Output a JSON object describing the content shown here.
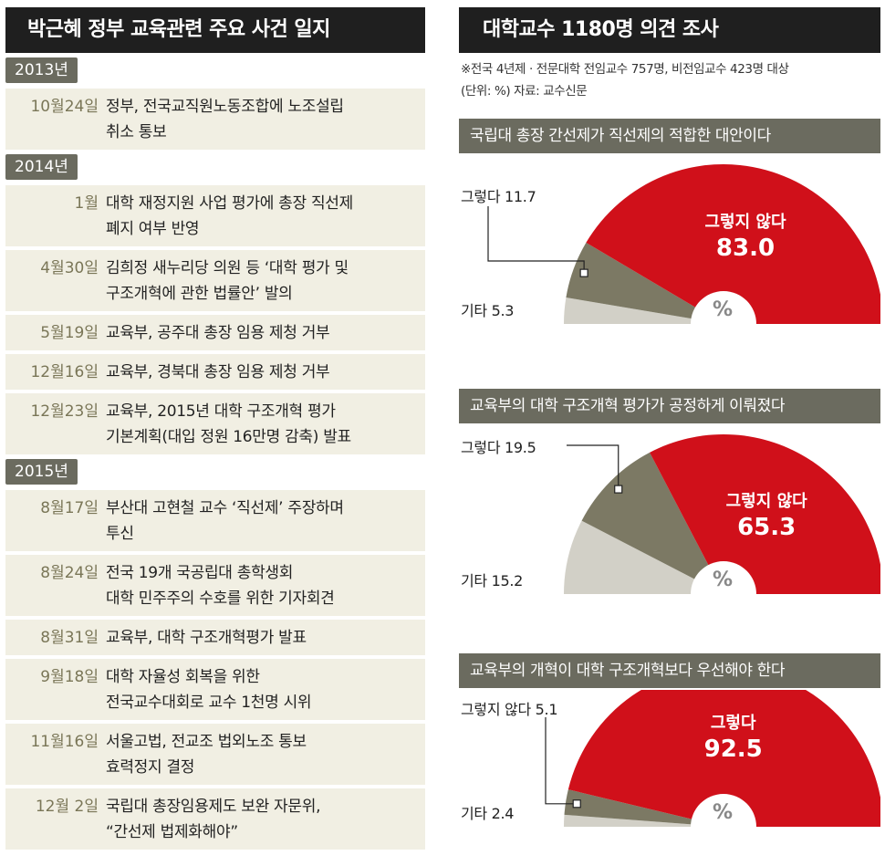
{
  "timeline": {
    "title": "박근혜 정부 교육관련 주요 사건 일지",
    "groups": [
      {
        "year": "2013년",
        "events": [
          {
            "date": "10월24일",
            "text": "정부, 전국교직원노동조합에 노조설립\n취소 통보"
          }
        ]
      },
      {
        "year": "2014년",
        "events": [
          {
            "date": "1월",
            "text": "대학 재정지원 사업 평가에 총장 직선제\n폐지 여부 반영"
          },
          {
            "date": "4월30일",
            "text": "김희정 새누리당 의원 등 ‘대학 평가 및\n구조개혁에 관한 법률안’ 발의"
          },
          {
            "date": "5월19일",
            "text": "교육부, 공주대 총장 임용 제청 거부"
          },
          {
            "date": "12월16일",
            "text": "교육부, 경북대 총장 임용 제청 거부"
          },
          {
            "date": "12월23일",
            "text": "교육부, 2015년 대학 구조개혁 평가\n기본계획(대입 정원 16만명 감축) 발표"
          }
        ]
      },
      {
        "year": "2015년",
        "events": [
          {
            "date": "8월17일",
            "text": "부산대 고현철 교수 ‘직선제’ 주장하며\n투신"
          },
          {
            "date": "8월24일",
            "text": "전국 19개 국공립대 총학생회\n대학 민주주의 수호를 위한 기자회견"
          },
          {
            "date": "8월31일",
            "text": "교육부, 대학 구조개혁평가 발표"
          },
          {
            "date": "9월18일",
            "text": "대학 자율성 회복을 위한\n전국교수대회로 교수 1천명 시위"
          },
          {
            "date": "11월16일",
            "text": "서울고법, 전교조 법외노조 통보\n효력정지 결정"
          },
          {
            "date": "12월  2일",
            "text": "국립대 총장임용제도 보완 자문위,\n“간선제 법제화해야”"
          }
        ]
      }
    ]
  },
  "survey": {
    "title": "대학교수 1180명 의견 조사",
    "note1": "※전국 4년제 · 전문대학 전임교수 757명, 비전임교수 423명 대상",
    "note2": "(단위: %)  자료: 교수신문",
    "unit_symbol": "%"
  },
  "colors": {
    "red": "#d0101a",
    "olive": "#7c7964",
    "light": "#d2d0c7",
    "header": "#1f1f1f",
    "bar": "#6b6b5f"
  },
  "chart_data": [
    {
      "type": "pie",
      "title": "국립대 총장 간선제가 직선제의 적합한 대안이다",
      "slices": [
        {
          "label": "그렇지 않다",
          "value": 83.0,
          "display": "83.0"
        },
        {
          "label": "그렇다",
          "value": 11.7,
          "display": "11.7"
        },
        {
          "label": "기타",
          "value": 5.3,
          "display": "5.3"
        }
      ]
    },
    {
      "type": "pie",
      "title": "교육부의 대학 구조개혁 평가가 공정하게 이뤄졌다",
      "slices": [
        {
          "label": "그렇지 않다",
          "value": 65.3,
          "display": "65.3"
        },
        {
          "label": "그렇다",
          "value": 19.5,
          "display": "19.5"
        },
        {
          "label": "기타",
          "value": 15.2,
          "display": "15.2"
        }
      ]
    },
    {
      "type": "pie",
      "title": "교육부의 개혁이 대학 구조개혁보다 우선해야 한다",
      "slices": [
        {
          "label": "그렇다",
          "value": 92.5,
          "display": "92.5"
        },
        {
          "label": "그렇지 않다",
          "value": 5.1,
          "display": "5.1"
        },
        {
          "label": "기타",
          "value": 2.4,
          "display": "2.4"
        }
      ]
    }
  ]
}
